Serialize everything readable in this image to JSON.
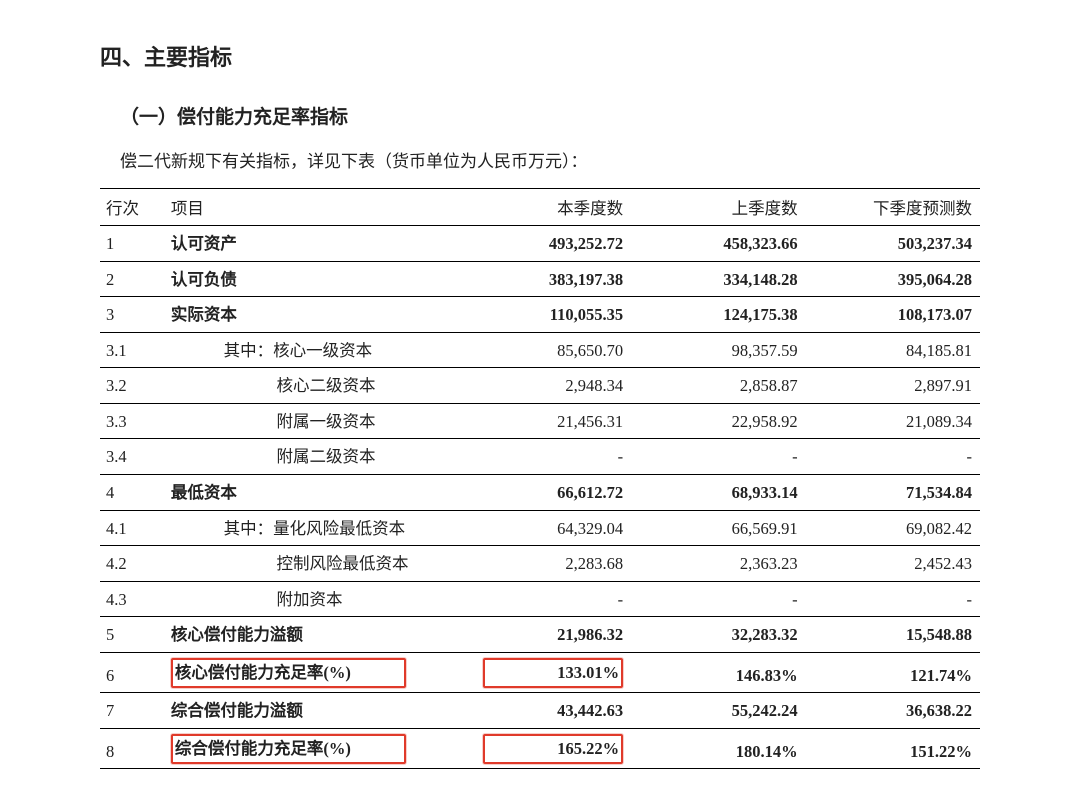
{
  "headings": {
    "section": "四、主要指标",
    "subsection": "（一）偿付能力充足率指标",
    "intro": "偿二代新规下有关指标，详见下表（货币单位为人民币万元）："
  },
  "colors": {
    "text": "#222222",
    "border": "#000000",
    "highlight_border": "#e03a2a",
    "background": "#ffffff"
  },
  "table": {
    "columns": [
      "行次",
      "项目",
      "本季度数",
      "上季度数",
      "下季度预测数"
    ],
    "col_align": [
      "left",
      "left",
      "right",
      "right",
      "right"
    ],
    "rows": [
      {
        "idx": "1",
        "indent": 0,
        "item": "认可资产",
        "cur": "493,252.72",
        "prev": "458,323.66",
        "next": "503,237.34",
        "bold": true,
        "highlight": false
      },
      {
        "idx": "2",
        "indent": 0,
        "item": "认可负债",
        "cur": "383,197.38",
        "prev": "334,148.28",
        "next": "395,064.28",
        "bold": true,
        "highlight": false
      },
      {
        "idx": "3",
        "indent": 0,
        "item": "实际资本",
        "cur": "110,055.35",
        "prev": "124,175.38",
        "next": "108,173.07",
        "bold": true,
        "highlight": false
      },
      {
        "idx": "3.1",
        "indent": 1,
        "item": "其中：核心一级资本",
        "cur": "85,650.70",
        "prev": "98,357.59",
        "next": "84,185.81",
        "bold": false,
        "highlight": false
      },
      {
        "idx": "3.2",
        "indent": 2,
        "item": "核心二级资本",
        "cur": "2,948.34",
        "prev": "2,858.87",
        "next": "2,897.91",
        "bold": false,
        "highlight": false
      },
      {
        "idx": "3.3",
        "indent": 2,
        "item": "附属一级资本",
        "cur": "21,456.31",
        "prev": "22,958.92",
        "next": "21,089.34",
        "bold": false,
        "highlight": false
      },
      {
        "idx": "3.4",
        "indent": 2,
        "item": "附属二级资本",
        "cur": "-",
        "prev": "-",
        "next": "-",
        "bold": false,
        "highlight": false
      },
      {
        "idx": "4",
        "indent": 0,
        "item": "最低资本",
        "cur": "66,612.72",
        "prev": "68,933.14",
        "next": "71,534.84",
        "bold": true,
        "highlight": false
      },
      {
        "idx": "4.1",
        "indent": 1,
        "item": "其中：量化风险最低资本",
        "cur": "64,329.04",
        "prev": "66,569.91",
        "next": "69,082.42",
        "bold": false,
        "highlight": false
      },
      {
        "idx": "4.2",
        "indent": 2,
        "item": "控制风险最低资本",
        "cur": "2,283.68",
        "prev": "2,363.23",
        "next": "2,452.43",
        "bold": false,
        "highlight": false
      },
      {
        "idx": "4.3",
        "indent": 2,
        "item": "附加资本",
        "cur": "-",
        "prev": "-",
        "next": "-",
        "bold": false,
        "highlight": false
      },
      {
        "idx": "5",
        "indent": 0,
        "item": "核心偿付能力溢额",
        "cur": "21,986.32",
        "prev": "32,283.32",
        "next": "15,548.88",
        "bold": true,
        "highlight": false
      },
      {
        "idx": "6",
        "indent": 0,
        "item": "核心偿付能力充足率(%)",
        "cur": "133.01%",
        "prev": "146.83%",
        "next": "121.74%",
        "bold": true,
        "highlight": true
      },
      {
        "idx": "7",
        "indent": 0,
        "item": "综合偿付能力溢额",
        "cur": "43,442.63",
        "prev": "55,242.24",
        "next": "36,638.22",
        "bold": true,
        "highlight": false
      },
      {
        "idx": "8",
        "indent": 0,
        "item": "综合偿付能力充足率(%)",
        "cur": "165.22%",
        "prev": "180.14%",
        "next": "151.22%",
        "bold": true,
        "highlight": true
      }
    ]
  }
}
